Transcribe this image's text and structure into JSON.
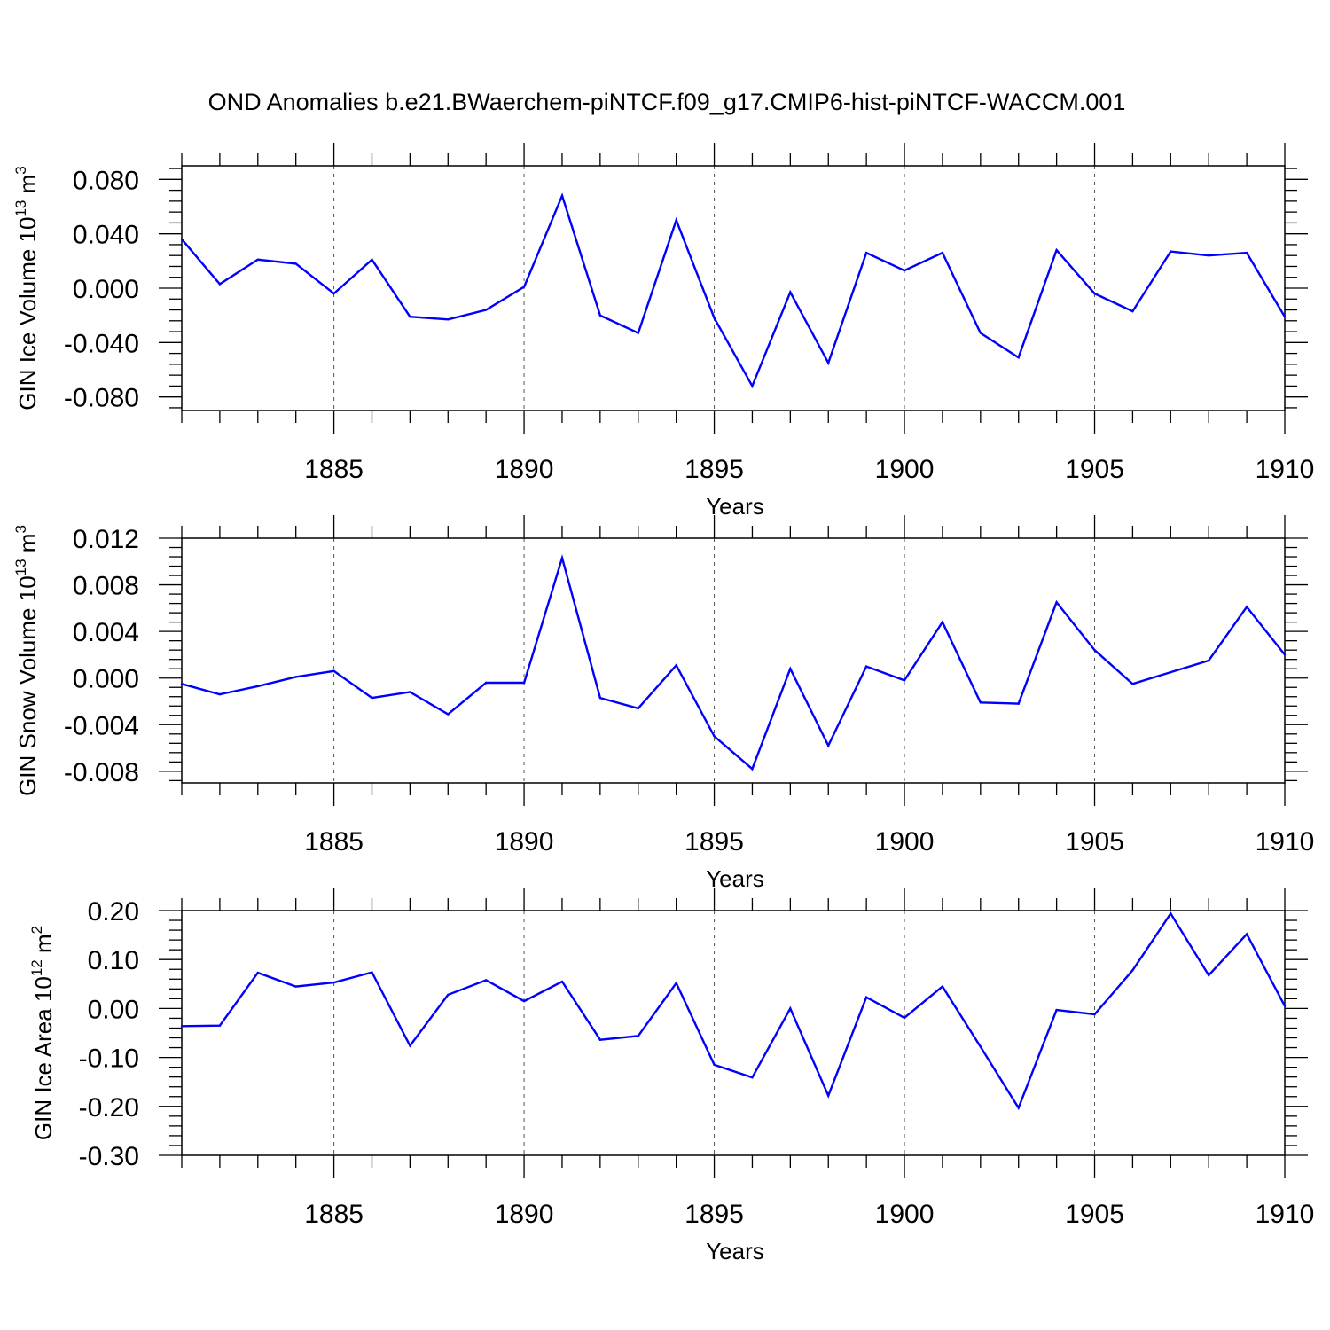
{
  "title": "OND Anomalies b.e21.BWaerchem-piNTCF.f09_g17.CMIP6-hist-piNTCF-WACCM.001",
  "line_color": "#0000ff",
  "chart_data": [
    {
      "type": "line",
      "ylabel_main": "GIN Ice Volume 10",
      "ylabel_exp": "13",
      "ylabel_unit": "m",
      "ylabel_unit_exp": "3",
      "xlabel": "Years",
      "xlim": [
        1881,
        1910
      ],
      "ylim": [
        -0.09,
        0.09
      ],
      "yticks": [
        -0.08,
        -0.04,
        0.0,
        0.04,
        0.08
      ],
      "ytick_labels": [
        "-0.080",
        "-0.040",
        "0.000",
        "0.040",
        "0.080"
      ],
      "xticks": [
        1885,
        1890,
        1895,
        1900,
        1905,
        1910
      ],
      "xtick_labels": [
        "1885",
        "1890",
        "1895",
        "1900",
        "1905",
        "1910"
      ],
      "x": [
        1881,
        1882,
        1883,
        1884,
        1885,
        1886,
        1887,
        1888,
        1889,
        1890,
        1891,
        1892,
        1893,
        1894,
        1895,
        1896,
        1897,
        1898,
        1899,
        1900,
        1901,
        1902,
        1903,
        1904,
        1905,
        1906,
        1907,
        1908,
        1909,
        1910
      ],
      "values": [
        0.036,
        0.003,
        0.021,
        0.018,
        -0.004,
        0.021,
        -0.021,
        -0.023,
        -0.016,
        0.001,
        0.068,
        -0.02,
        -0.033,
        0.05,
        -0.022,
        -0.072,
        -0.003,
        -0.055,
        0.026,
        0.013,
        0.026,
        -0.033,
        -0.051,
        0.028,
        -0.004,
        -0.017,
        0.027,
        0.024,
        0.026,
        -0.021
      ]
    },
    {
      "type": "line",
      "ylabel_main": "GIN Snow Volume 10",
      "ylabel_exp": "13",
      "ylabel_unit": "m",
      "ylabel_unit_exp": "3",
      "xlabel": "Years",
      "xlim": [
        1881,
        1910
      ],
      "ylim": [
        -0.009,
        0.012
      ],
      "yticks": [
        -0.008,
        -0.004,
        0.0,
        0.004,
        0.008,
        0.012
      ],
      "ytick_labels": [
        "-0.008",
        "-0.004",
        "0.000",
        "0.004",
        "0.008",
        "0.012"
      ],
      "xticks": [
        1885,
        1890,
        1895,
        1900,
        1905,
        1910
      ],
      "xtick_labels": [
        "1885",
        "1890",
        "1895",
        "1900",
        "1905",
        "1910"
      ],
      "x": [
        1881,
        1882,
        1883,
        1884,
        1885,
        1886,
        1887,
        1888,
        1889,
        1890,
        1891,
        1892,
        1893,
        1894,
        1895,
        1896,
        1897,
        1898,
        1899,
        1900,
        1901,
        1902,
        1903,
        1904,
        1905,
        1906,
        1907,
        1908,
        1909,
        1910
      ],
      "values": [
        -0.0005,
        -0.0014,
        -0.0007,
        0.0001,
        0.0006,
        -0.0017,
        -0.0012,
        -0.0031,
        -0.0004,
        -0.0004,
        0.0103,
        -0.0017,
        -0.0026,
        0.0011,
        -0.005,
        -0.0078,
        0.0008,
        -0.0058,
        0.001,
        -0.0002,
        0.0048,
        -0.0021,
        -0.0022,
        0.0065,
        0.0024,
        -0.0005,
        0.0005,
        0.0015,
        0.0061,
        0.002
      ]
    },
    {
      "type": "line",
      "ylabel_main": "GIN Ice Area 10",
      "ylabel_exp": "12",
      "ylabel_unit": "m",
      "ylabel_unit_exp": "2",
      "xlabel": "Years",
      "xlim": [
        1881,
        1910
      ],
      "ylim": [
        -0.3,
        0.2
      ],
      "yticks": [
        -0.3,
        -0.2,
        -0.1,
        0.0,
        0.1,
        0.2
      ],
      "ytick_labels": [
        "-0.30",
        "-0.20",
        "-0.10",
        "0.00",
        "0.10",
        "0.20"
      ],
      "xticks": [
        1885,
        1890,
        1895,
        1900,
        1905,
        1910
      ],
      "xtick_labels": [
        "1885",
        "1890",
        "1895",
        "1900",
        "1905",
        "1910"
      ],
      "x": [
        1881,
        1882,
        1883,
        1884,
        1885,
        1886,
        1887,
        1888,
        1889,
        1890,
        1891,
        1892,
        1893,
        1894,
        1895,
        1896,
        1897,
        1898,
        1899,
        1900,
        1901,
        1902,
        1903,
        1904,
        1905,
        1906,
        1907,
        1908,
        1909,
        1910
      ],
      "values": [
        -0.036,
        -0.035,
        0.073,
        0.045,
        0.053,
        0.074,
        -0.076,
        0.028,
        0.058,
        0.015,
        0.055,
        -0.064,
        -0.056,
        0.052,
        -0.115,
        -0.141,
        0.0,
        -0.178,
        0.023,
        -0.019,
        0.045,
        -0.078,
        -0.203,
        -0.003,
        -0.012,
        0.078,
        0.194,
        0.068,
        0.152,
        0.005
      ]
    }
  ]
}
